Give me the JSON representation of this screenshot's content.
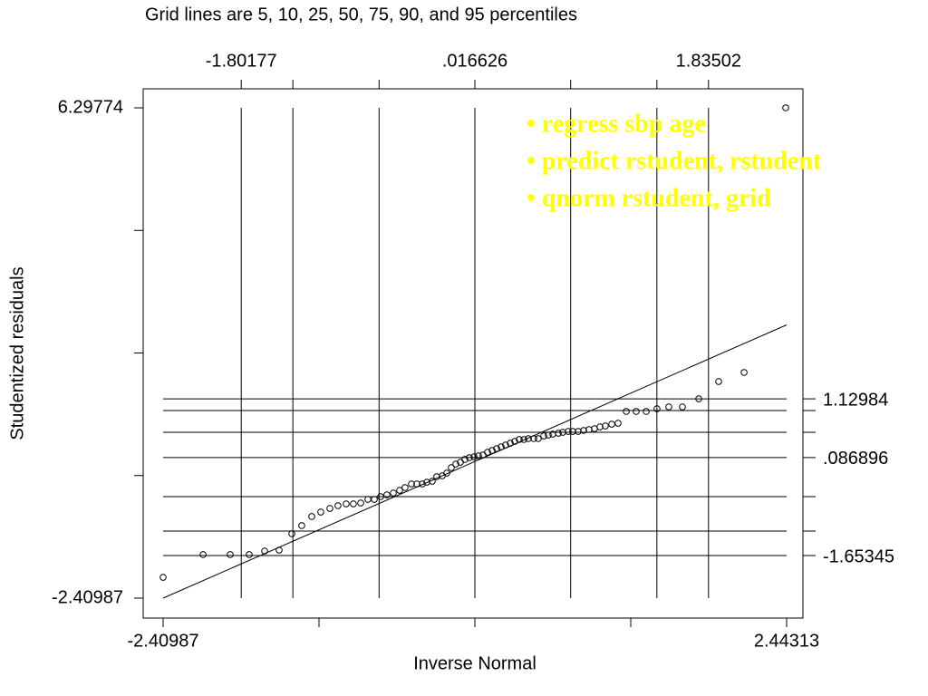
{
  "chart_data": {
    "type": "scatter",
    "title": "Grid lines are 5, 10, 25, 50, 75, 90, and 95 percentiles",
    "xlabel": "Inverse Normal",
    "ylabel": "Studentized residuals",
    "annotations": [
      "• regress sbp age",
      "• predict rstudent, rstudent",
      "• qnorm rstudent, grid"
    ],
    "annotation_color": "#ffff00",
    "marker_color": "#000000",
    "grid": true,
    "xlim": [
      -2.565,
      2.57
    ],
    "ylim": [
      -2.764,
      6.636
    ],
    "x2lim": [
      -2.565,
      2.57
    ],
    "y2lim": [
      -2.764,
      6.636
    ],
    "xticks": [
      -2.40987,
      {
        "value": -1.19662,
        "label": null
      },
      {
        "value": 0.01663,
        "label": null
      },
      {
        "value": 1.22988,
        "label": null
      },
      2.44313
    ],
    "yticks": [
      -2.40987,
      {
        "value": -0.23297,
        "label": null
      },
      {
        "value": 1.94394,
        "label": null
      },
      {
        "value": 4.12084,
        "label": null
      },
      6.29774
    ],
    "x2ticks": [
      -1.80177,
      {
        "value": -1.3999,
        "label": null
      },
      {
        "value": -0.729,
        "label": null
      },
      {
        "value": 0.016626,
        "label": ".016626"
      },
      {
        "value": 0.7622,
        "label": null
      },
      {
        "value": 1.4333,
        "label": null
      },
      1.83502
    ],
    "y2ticks": [
      -1.65345,
      {
        "value": -1.2188,
        "label": null
      },
      {
        "value": -0.6072,
        "label": null
      },
      {
        "value": 0.086896,
        "label": ".086896"
      },
      {
        "value": 0.5355,
        "label": null
      },
      {
        "value": 0.9218,
        "label": null
      },
      1.12984
    ],
    "reference_line": {
      "x": [
        -2.40987,
        2.44313
      ],
      "values": [
        -2.40987,
        2.44313
      ]
    },
    "x": [
      -2.41,
      -2.099,
      -1.888,
      -1.74,
      -1.62,
      -1.507,
      -1.408,
      -1.331,
      -1.253,
      -1.183,
      -1.112,
      -1.049,
      -0.985,
      -0.929,
      -0.872,
      -0.816,
      -0.766,
      -0.717,
      -0.668,
      -0.618,
      -0.569,
      -0.527,
      -0.477,
      -0.435,
      -0.393,
      -0.357,
      -0.315,
      -0.28,
      -0.237,
      -0.202,
      -0.167,
      -0.132,
      -0.096,
      -0.061,
      -0.026,
      0.01,
      0.045,
      0.08,
      0.115,
      0.151,
      0.186,
      0.221,
      0.256,
      0.292,
      0.327,
      0.362,
      0.398,
      0.433,
      0.475,
      0.51,
      0.553,
      0.588,
      0.623,
      0.666,
      0.701,
      0.743,
      0.778,
      0.821,
      0.863,
      0.905,
      0.948,
      0.99,
      1.032,
      1.082,
      1.131,
      1.195,
      1.272,
      1.35,
      1.434,
      1.526,
      1.632,
      1.759,
      1.914,
      2.112,
      2.436
    ],
    "values": [
      -2.04,
      -1.637,
      -1.637,
      -1.637,
      -1.573,
      -1.557,
      -1.267,
      -1.122,
      -0.961,
      -0.881,
      -0.817,
      -0.768,
      -0.736,
      -0.736,
      -0.72,
      -0.656,
      -0.656,
      -0.607,
      -0.575,
      -0.543,
      -0.495,
      -0.446,
      -0.382,
      -0.382,
      -0.382,
      -0.35,
      -0.334,
      -0.253,
      -0.237,
      -0.189,
      -0.092,
      -0.028,
      0.004,
      0.053,
      0.085,
      0.101,
      0.117,
      0.133,
      0.181,
      0.213,
      0.246,
      0.278,
      0.31,
      0.342,
      0.374,
      0.407,
      0.407,
      0.423,
      0.423,
      0.423,
      0.471,
      0.487,
      0.503,
      0.519,
      0.535,
      0.551,
      0.551,
      0.551,
      0.568,
      0.584,
      0.6,
      0.632,
      0.648,
      0.68,
      0.696,
      0.906,
      0.906,
      0.906,
      0.954,
      0.986,
      0.986,
      1.131,
      1.437,
      1.598,
      6.298
    ]
  }
}
